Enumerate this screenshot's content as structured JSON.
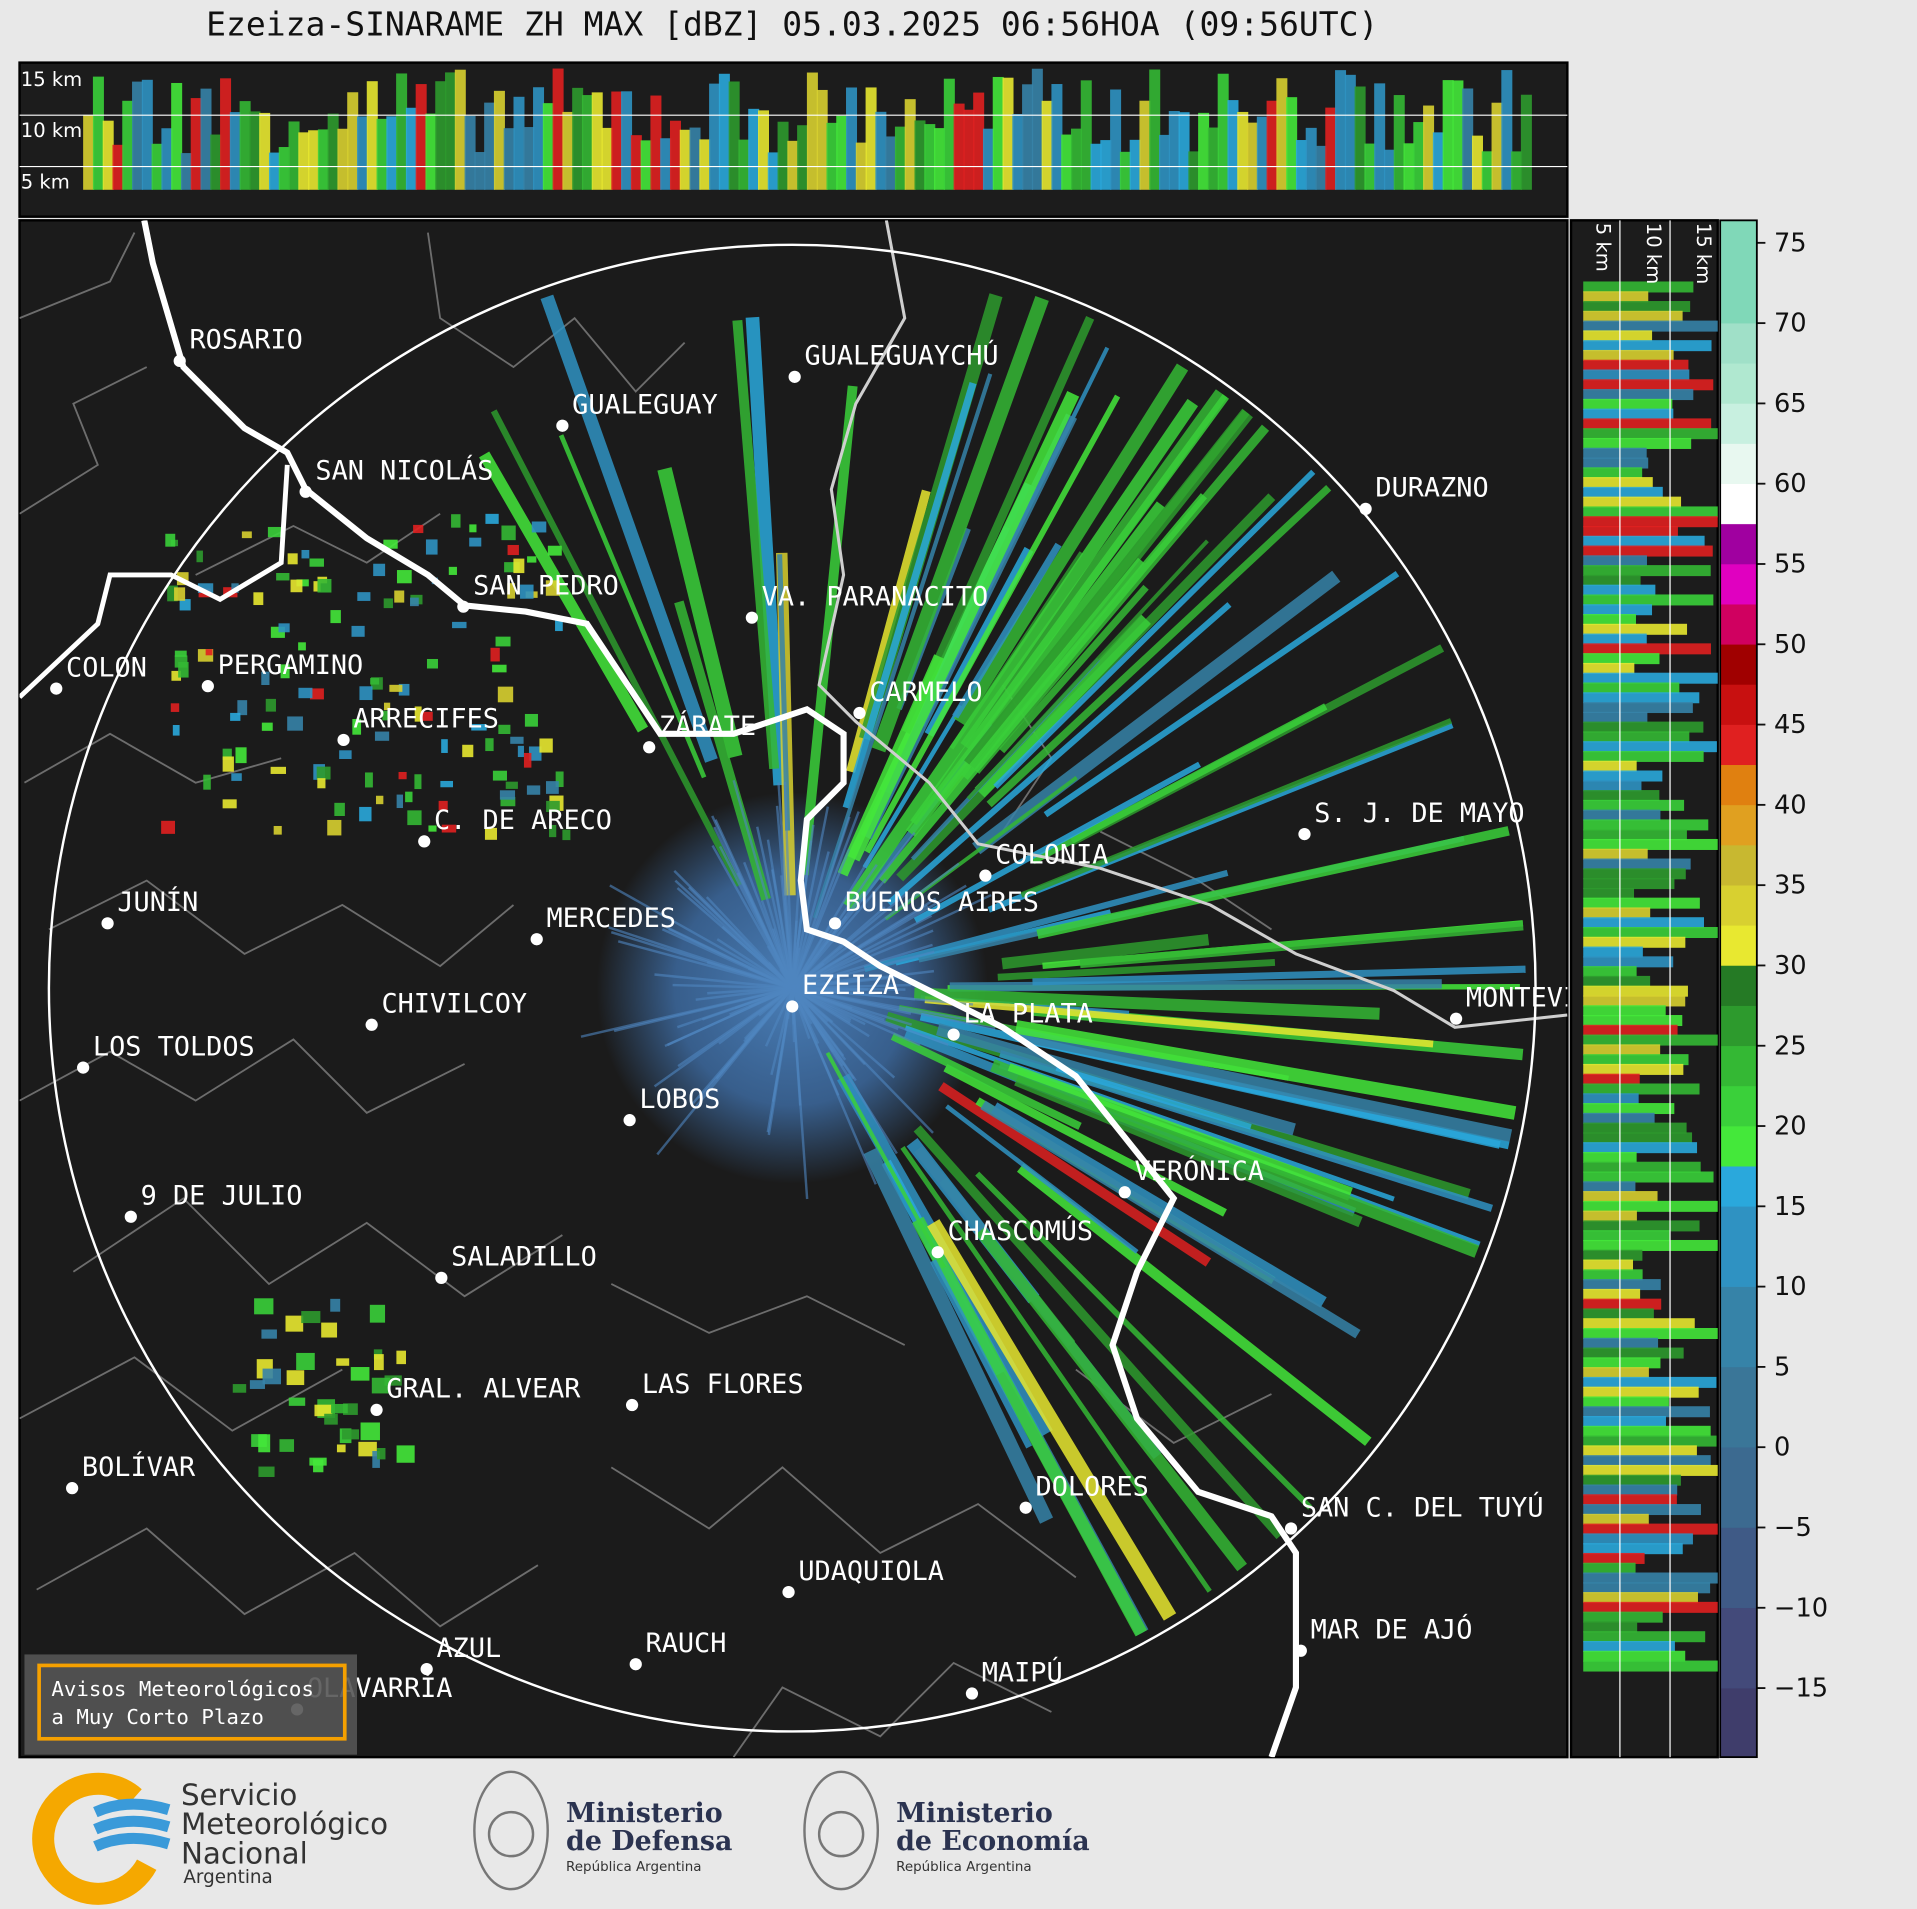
{
  "title": "Ezeiza-SINARAME ZH MAX [dBZ] 05.03.2025 06:56HOA (09:56UTC)",
  "height_labels": {
    "top": [
      "15 km",
      "10 km",
      "5 km"
    ],
    "side": [
      "5 km",
      "10 km",
      "15 km"
    ]
  },
  "cities": [
    "ROSARIO",
    "GUALEGUAYCHÚ",
    "GUALEGUAY",
    "SAN NICOLÁS",
    "DURAZNO",
    "SAN PEDRO",
    "VA. PARANACITO",
    "COLON",
    "PERGAMINO",
    "CARMELO",
    "ARRECIFES",
    "ZÁRATE",
    "S. J. DE MAYO",
    "C. DE ARECO",
    "COLONIA",
    "BUENOS AIRES",
    "JUNÍN",
    "MERCEDES",
    "EZEIZA",
    "MONTEVIDEO",
    "CHIVILCOY",
    "LA PLATA",
    "LOS TOLDOS",
    "LOBOS",
    "VERÓNICA",
    "9 DE JULIO",
    "CHASCOMÚS",
    "SALADILLO",
    "GRAL. ALVEAR",
    "LAS FLORES",
    "BOLÍVAR",
    "DOLORES",
    "SAN C. DEL TUYÚ",
    "UDAQUIOLA",
    "RAUCH",
    "MAR DE AJÓ",
    "AZUL",
    "OLAVARRÍA",
    "MAIPÚ"
  ],
  "colorbar": {
    "ylim": [
      -19.3,
      76.4
    ],
    "yticks": [
      {
        "value": -15,
        "label": "−15"
      },
      {
        "value": -10,
        "label": "−10"
      },
      {
        "value": -5,
        "label": "−5"
      },
      0,
      5,
      10,
      15,
      20,
      25,
      30,
      35,
      40,
      45,
      50,
      55,
      60,
      65,
      70,
      75
    ],
    "bounds": [
      -19.3,
      -15,
      -10,
      -5,
      0,
      5,
      10,
      15,
      17.5,
      20,
      22.5,
      25,
      27.5,
      30,
      32.5,
      35,
      37.5,
      40,
      42.5,
      45,
      47.5,
      50,
      52.5,
      55,
      57.5,
      60,
      62.5,
      65,
      67.5,
      70,
      76.4
    ],
    "colors": [
      "#3f3d6b",
      "#434a7a",
      "#3f5a86",
      "#3c6a90",
      "#3a7698",
      "#3683a8",
      "#2f92c2",
      "#2aa8dc",
      "#44e83a",
      "#3ad03a",
      "#34b834",
      "#2d9a2d",
      "#257a25",
      "#e8e830",
      "#d8d030",
      "#c8b830",
      "#e0a020",
      "#e08010",
      "#e02020",
      "#c81010",
      "#a00000",
      "#d00060",
      "#e000c0",
      "#a000a0",
      "#ffffff",
      "#e8f8f0",
      "#c8f0e0",
      "#b0e8d0",
      "#a0e0c8",
      "#80d8b8"
    ]
  },
  "notice": [
    "Avisos Meteorológicos",
    "a Muy Corto Plazo"
  ],
  "logos": {
    "smn": [
      "Servicio",
      "Meteorológico",
      "Nacional",
      "Argentina"
    ],
    "defensa": [
      "Ministerio",
      "de Defensa",
      "República Argentina"
    ],
    "economia": [
      "Ministerio",
      "de Economía",
      "República Argentina"
    ]
  }
}
